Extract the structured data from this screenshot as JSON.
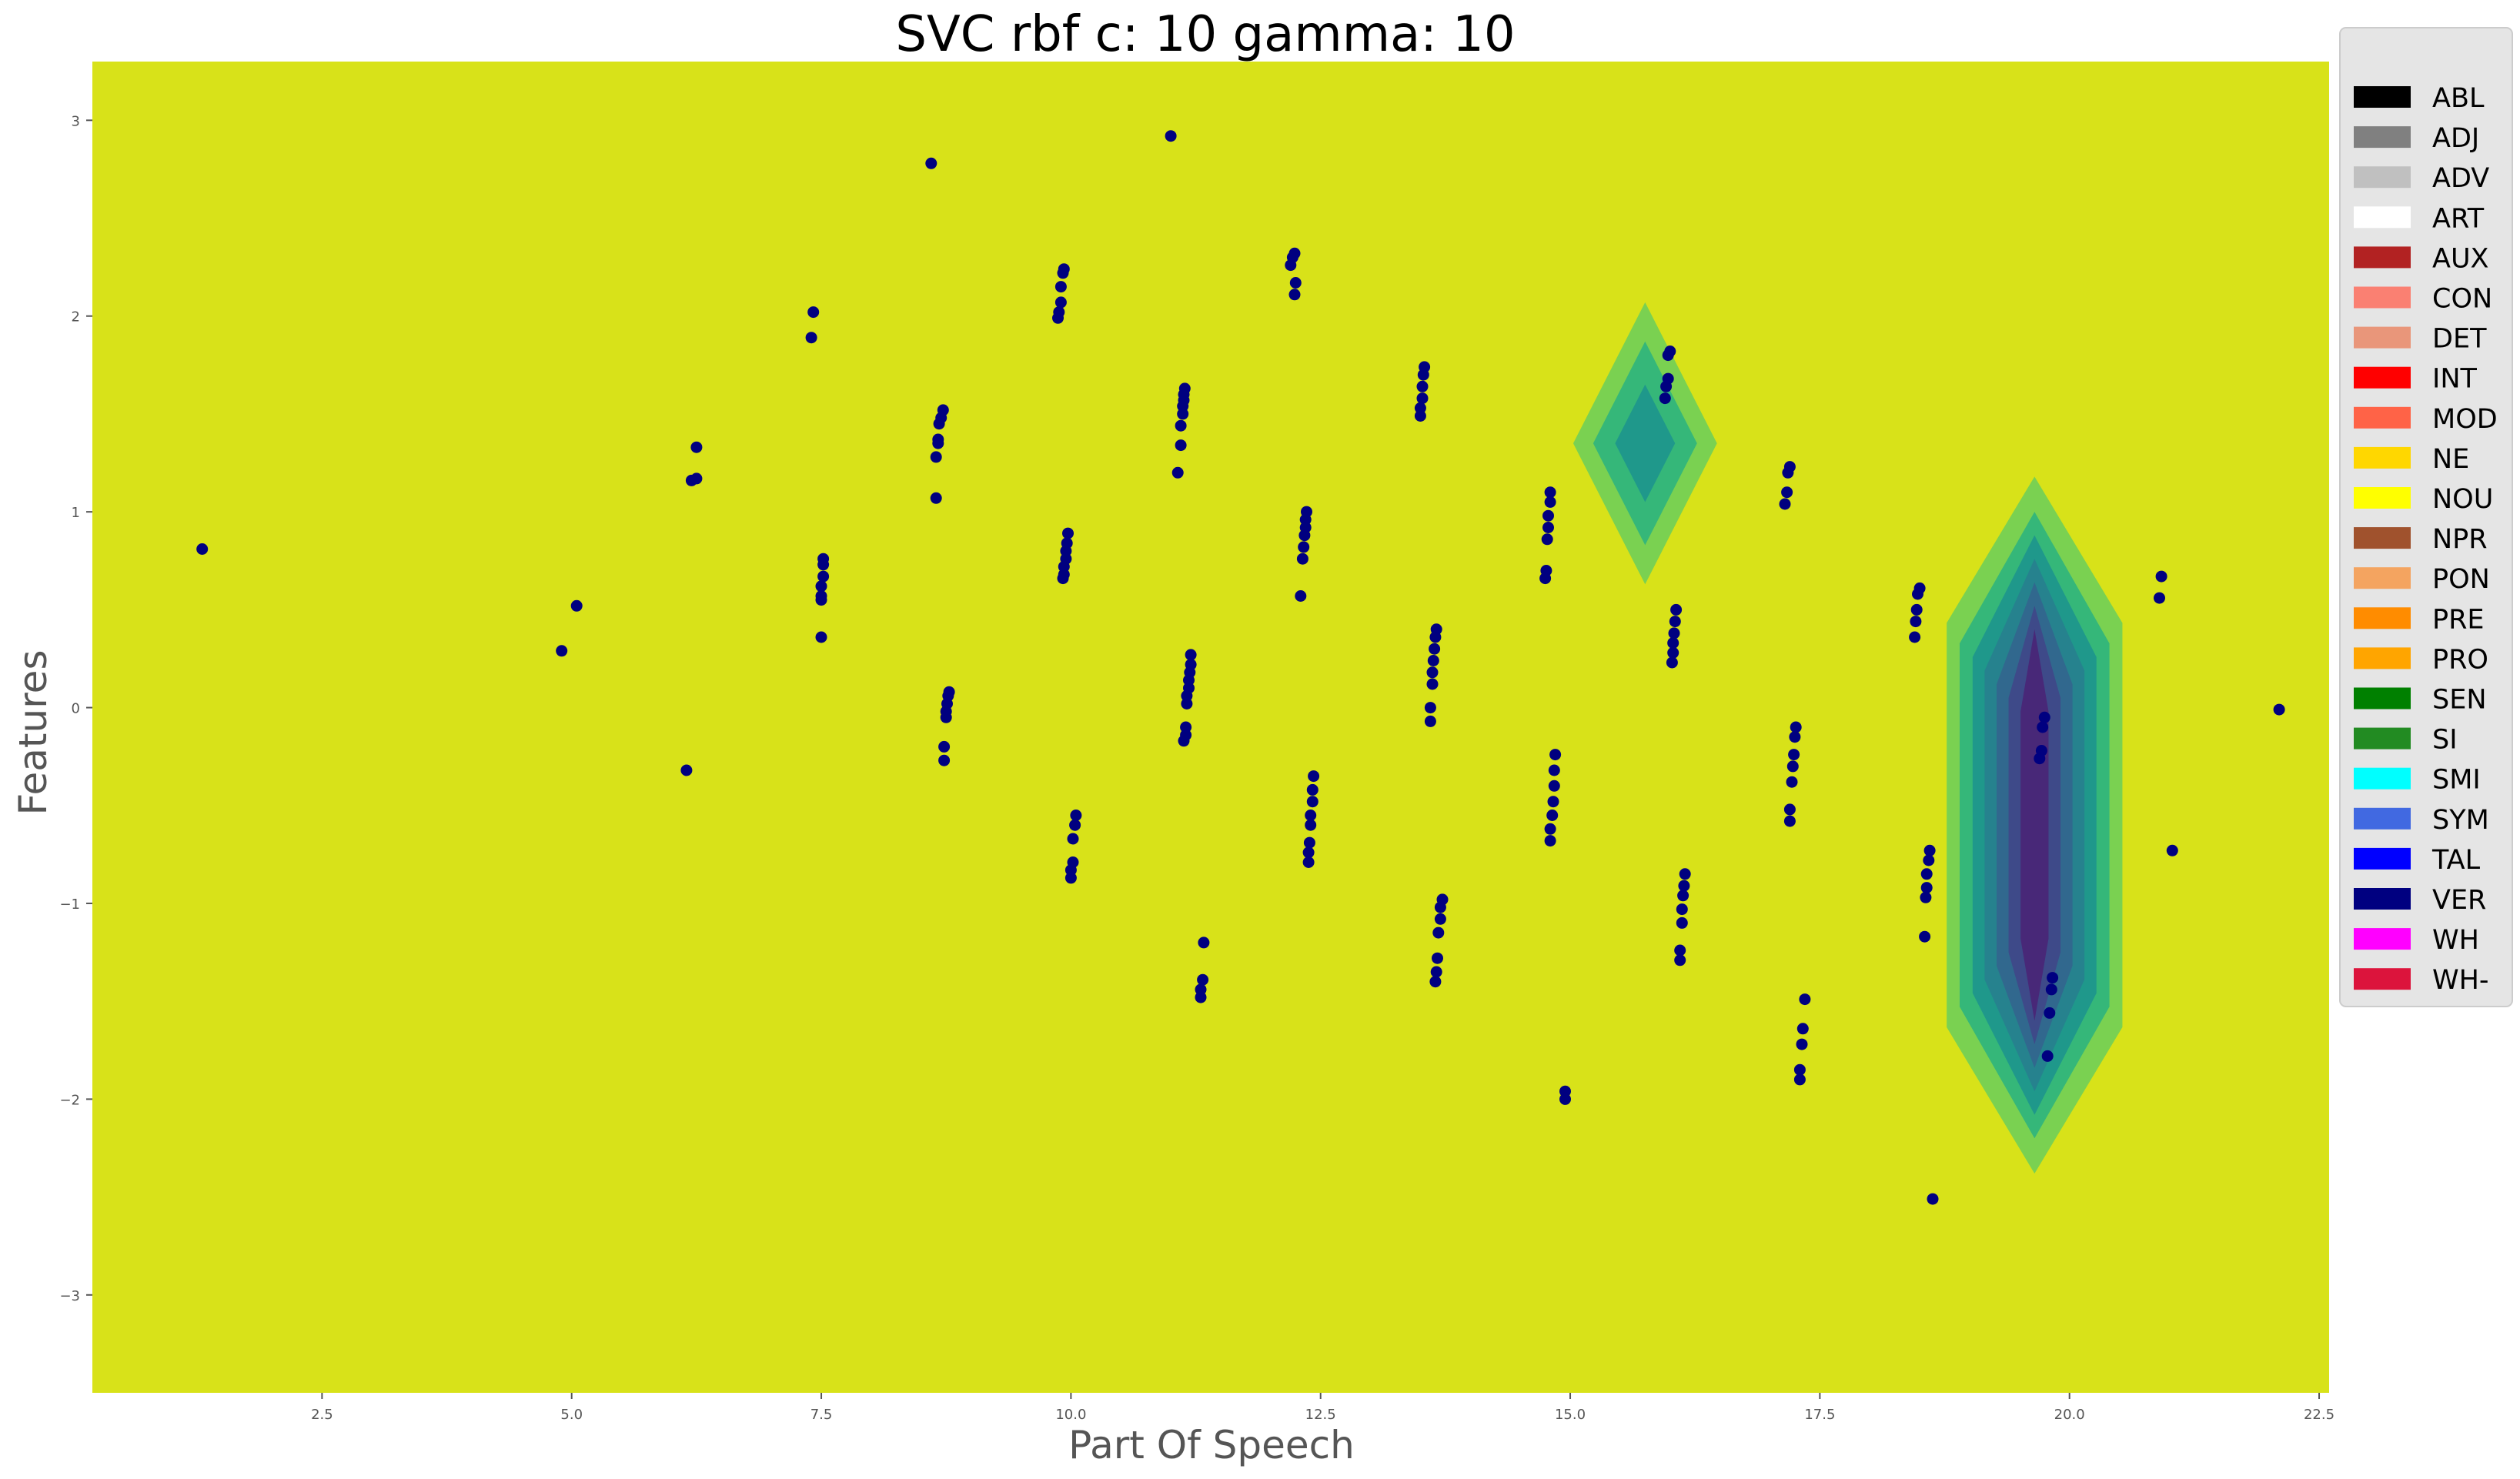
{
  "chart_data": {
    "type": "scatter",
    "title": "SVC rbf c: 10 gamma: 10",
    "xlabel": "Part Of Speech",
    "ylabel": "Features",
    "xlim": [
      0.2,
      22.6
    ],
    "ylim": [
      -3.5,
      3.3
    ],
    "xticks": [
      2.5,
      5.0,
      7.5,
      10.0,
      12.5,
      15.0,
      17.5,
      20.0,
      22.5
    ],
    "yticks": [
      -3,
      -2,
      -1,
      0,
      1,
      2,
      3
    ],
    "grid": false,
    "background_color": "#d8e219",
    "point_color": "#000080",
    "legend_position": "outside-right",
    "legend": [
      {
        "label": "ABL",
        "color": "#000000"
      },
      {
        "label": "ADJ",
        "color": "#808080"
      },
      {
        "label": "ADV",
        "color": "#c0c0c0"
      },
      {
        "label": "ART",
        "color": "#ffffff"
      },
      {
        "label": "AUX",
        "color": "#b22222"
      },
      {
        "label": "CON",
        "color": "#fa8072"
      },
      {
        "label": "DET",
        "color": "#e9967a"
      },
      {
        "label": "INT",
        "color": "#ff0000"
      },
      {
        "label": "MOD",
        "color": "#ff6347"
      },
      {
        "label": "NE",
        "color": "#ffd700"
      },
      {
        "label": "NOU",
        "color": "#ffff00"
      },
      {
        "label": "NPR",
        "color": "#a0522d"
      },
      {
        "label": "PON",
        "color": "#f4a460"
      },
      {
        "label": "PRE",
        "color": "#ff8c00"
      },
      {
        "label": "PRO",
        "color": "#ffa500"
      },
      {
        "label": "SEN",
        "color": "#008000"
      },
      {
        "label": "SI",
        "color": "#228b22"
      },
      {
        "label": "SMI",
        "color": "#00ffff"
      },
      {
        "label": "SYM",
        "color": "#4169e1"
      },
      {
        "label": "TAL",
        "color": "#0000ff"
      },
      {
        "label": "VER",
        "color": "#000080"
      },
      {
        "label": "WH",
        "color": "#ff00ff"
      },
      {
        "label": "WH-",
        "color": "#dc143c"
      }
    ],
    "decision_regions": [
      {
        "center": [
          15.75,
          1.35
        ],
        "levels": [
          {
            "dx": 0.72,
            "dy": 0.72,
            "color": "#7ad151"
          },
          {
            "dx": 0.52,
            "dy": 0.52,
            "color": "#35b779"
          },
          {
            "dx": 0.3,
            "dy": 0.3,
            "color": "#1f988b"
          }
        ]
      },
      {
        "center": [
          19.65,
          -0.6
        ],
        "levels": [
          {
            "dx": 0.88,
            "dy": 1.78,
            "color": "#7ad151"
          },
          {
            "dx": 0.75,
            "dy": 1.6,
            "color": "#35b779"
          },
          {
            "dx": 0.62,
            "dy": 1.48,
            "color": "#1f988b"
          },
          {
            "dx": 0.5,
            "dy": 1.36,
            "color": "#26828e"
          },
          {
            "dx": 0.38,
            "dy": 1.24,
            "color": "#31688e"
          },
          {
            "dx": 0.26,
            "dy": 1.12,
            "color": "#3e4a89"
          },
          {
            "dx": 0.14,
            "dy": 1.0,
            "color": "#482878"
          }
        ]
      }
    ],
    "points": [
      [
        1.3,
        0.81
      ],
      [
        4.9,
        0.29
      ],
      [
        5.05,
        0.52
      ],
      [
        6.15,
        -0.32
      ],
      [
        6.2,
        1.16
      ],
      [
        6.25,
        1.17
      ],
      [
        6.25,
        1.33
      ],
      [
        7.4,
        1.89
      ],
      [
        7.42,
        2.02
      ],
      [
        7.5,
        0.36
      ],
      [
        7.5,
        0.55
      ],
      [
        7.5,
        0.57
      ],
      [
        7.5,
        0.62
      ],
      [
        7.52,
        0.67
      ],
      [
        7.52,
        0.73
      ],
      [
        7.52,
        0.76
      ],
      [
        8.6,
        2.78
      ],
      [
        8.65,
        1.07
      ],
      [
        8.65,
        1.28
      ],
      [
        8.67,
        1.35
      ],
      [
        8.67,
        1.37
      ],
      [
        8.68,
        1.45
      ],
      [
        8.7,
        1.48
      ],
      [
        8.72,
        1.52
      ],
      [
        8.73,
        -0.27
      ],
      [
        8.73,
        -0.2
      ],
      [
        8.75,
        -0.05
      ],
      [
        8.75,
        -0.02
      ],
      [
        8.76,
        0.02
      ],
      [
        8.77,
        0.06
      ],
      [
        8.78,
        0.08
      ],
      [
        9.87,
        1.99
      ],
      [
        9.88,
        2.02
      ],
      [
        9.9,
        2.07
      ],
      [
        9.9,
        2.15
      ],
      [
        9.92,
        2.22
      ],
      [
        9.93,
        2.24
      ],
      [
        9.92,
        0.66
      ],
      [
        9.93,
        0.68
      ],
      [
        9.93,
        0.72
      ],
      [
        9.95,
        0.76
      ],
      [
        9.95,
        0.8
      ],
      [
        9.96,
        0.84
      ],
      [
        9.97,
        0.89
      ],
      [
        10.0,
        -0.87
      ],
      [
        10.0,
        -0.83
      ],
      [
        10.02,
        -0.79
      ],
      [
        10.02,
        -0.67
      ],
      [
        10.04,
        -0.6
      ],
      [
        10.05,
        -0.55
      ],
      [
        11.0,
        2.92
      ],
      [
        11.07,
        1.2
      ],
      [
        11.1,
        1.34
      ],
      [
        11.1,
        1.44
      ],
      [
        11.12,
        1.5
      ],
      [
        11.12,
        1.54
      ],
      [
        11.13,
        1.57
      ],
      [
        11.13,
        1.6
      ],
      [
        11.14,
        1.63
      ],
      [
        11.13,
        -0.17
      ],
      [
        11.15,
        -0.14
      ],
      [
        11.15,
        -0.1
      ],
      [
        11.16,
        0.02
      ],
      [
        11.16,
        0.06
      ],
      [
        11.18,
        0.1
      ],
      [
        11.18,
        0.14
      ],
      [
        11.19,
        0.18
      ],
      [
        11.2,
        0.22
      ],
      [
        11.2,
        0.27
      ],
      [
        11.3,
        -1.48
      ],
      [
        11.3,
        -1.44
      ],
      [
        11.32,
        -1.39
      ],
      [
        11.33,
        -1.2
      ],
      [
        12.2,
        2.26
      ],
      [
        12.22,
        2.3
      ],
      [
        12.24,
        2.32
      ],
      [
        12.24,
        2.11
      ],
      [
        12.25,
        2.17
      ],
      [
        12.3,
        0.57
      ],
      [
        12.32,
        0.76
      ],
      [
        12.33,
        0.82
      ],
      [
        12.34,
        0.88
      ],
      [
        12.35,
        0.92
      ],
      [
        12.35,
        0.96
      ],
      [
        12.36,
        1.0
      ],
      [
        12.38,
        -0.79
      ],
      [
        12.38,
        -0.74
      ],
      [
        12.39,
        -0.69
      ],
      [
        12.4,
        -0.6
      ],
      [
        12.4,
        -0.55
      ],
      [
        12.42,
        -0.48
      ],
      [
        12.42,
        -0.42
      ],
      [
        12.43,
        -0.35
      ],
      [
        13.5,
        1.49
      ],
      [
        13.5,
        1.53
      ],
      [
        13.52,
        1.58
      ],
      [
        13.52,
        1.64
      ],
      [
        13.53,
        1.7
      ],
      [
        13.54,
        1.74
      ],
      [
        13.6,
        -0.07
      ],
      [
        13.6,
        0.0
      ],
      [
        13.62,
        0.12
      ],
      [
        13.62,
        0.18
      ],
      [
        13.63,
        0.24
      ],
      [
        13.64,
        0.3
      ],
      [
        13.65,
        0.36
      ],
      [
        13.66,
        0.4
      ],
      [
        13.65,
        -1.4
      ],
      [
        13.66,
        -1.35
      ],
      [
        13.67,
        -1.28
      ],
      [
        13.68,
        -1.15
      ],
      [
        13.7,
        -1.08
      ],
      [
        13.7,
        -1.02
      ],
      [
        13.72,
        -0.98
      ],
      [
        14.75,
        0.66
      ],
      [
        14.76,
        0.7
      ],
      [
        14.77,
        0.86
      ],
      [
        14.78,
        0.92
      ],
      [
        14.78,
        0.98
      ],
      [
        14.8,
        1.05
      ],
      [
        14.8,
        1.1
      ],
      [
        14.8,
        -0.68
      ],
      [
        14.8,
        -0.62
      ],
      [
        14.82,
        -0.55
      ],
      [
        14.83,
        -0.48
      ],
      [
        14.84,
        -0.4
      ],
      [
        14.84,
        -0.32
      ],
      [
        14.85,
        -0.24
      ],
      [
        14.95,
        -2.0
      ],
      [
        14.95,
        -1.96
      ],
      [
        15.95,
        1.58
      ],
      [
        15.96,
        1.64
      ],
      [
        15.98,
        1.68
      ],
      [
        15.98,
        1.8
      ],
      [
        16.0,
        1.82
      ],
      [
        16.02,
        0.23
      ],
      [
        16.03,
        0.28
      ],
      [
        16.03,
        0.33
      ],
      [
        16.04,
        0.38
      ],
      [
        16.05,
        0.44
      ],
      [
        16.06,
        0.5
      ],
      [
        16.1,
        -1.29
      ],
      [
        16.1,
        -1.24
      ],
      [
        16.12,
        -1.1
      ],
      [
        16.12,
        -1.03
      ],
      [
        16.13,
        -0.96
      ],
      [
        16.14,
        -0.91
      ],
      [
        16.15,
        -0.85
      ],
      [
        17.15,
        1.04
      ],
      [
        17.17,
        1.1
      ],
      [
        17.18,
        1.2
      ],
      [
        17.2,
        1.23
      ],
      [
        17.2,
        -0.58
      ],
      [
        17.2,
        -0.52
      ],
      [
        17.22,
        -0.38
      ],
      [
        17.23,
        -0.3
      ],
      [
        17.24,
        -0.24
      ],
      [
        17.25,
        -0.15
      ],
      [
        17.26,
        -0.1
      ],
      [
        17.3,
        -1.9
      ],
      [
        17.3,
        -1.85
      ],
      [
        17.32,
        -1.72
      ],
      [
        17.33,
        -1.64
      ],
      [
        17.35,
        -1.49
      ],
      [
        18.45,
        0.36
      ],
      [
        18.46,
        0.44
      ],
      [
        18.47,
        0.5
      ],
      [
        18.48,
        0.58
      ],
      [
        18.5,
        0.61
      ],
      [
        18.55,
        -1.17
      ],
      [
        18.56,
        -0.97
      ],
      [
        18.57,
        -0.92
      ],
      [
        18.57,
        -0.85
      ],
      [
        18.59,
        -0.78
      ],
      [
        18.6,
        -0.73
      ],
      [
        18.63,
        -2.51
      ],
      [
        19.7,
        -0.26
      ],
      [
        19.72,
        -0.22
      ],
      [
        19.73,
        -0.1
      ],
      [
        19.75,
        -0.05
      ],
      [
        19.78,
        -1.78
      ],
      [
        19.8,
        -1.56
      ],
      [
        19.82,
        -1.44
      ],
      [
        19.83,
        -1.38
      ],
      [
        20.9,
        0.56
      ],
      [
        20.92,
        0.67
      ],
      [
        21.03,
        -0.73
      ],
      [
        22.1,
        -0.01
      ]
    ]
  }
}
